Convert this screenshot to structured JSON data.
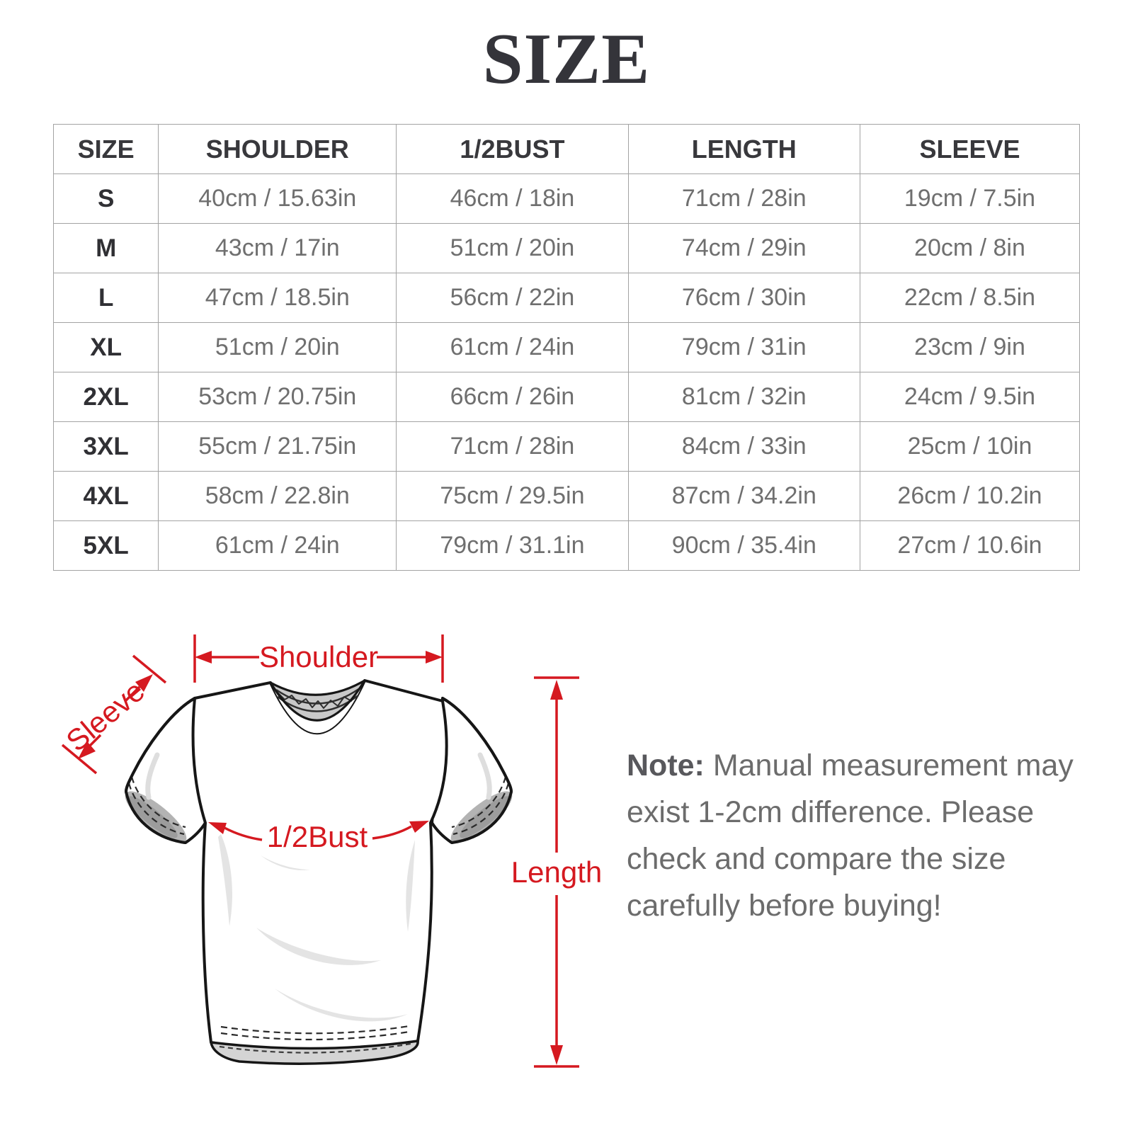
{
  "title": "SIZE",
  "table": {
    "headers": [
      "SIZE",
      "SHOULDER",
      "1/2BUST",
      "LENGTH",
      "SLEEVE"
    ],
    "rows": [
      [
        "S",
        "40cm / 15.63in",
        "46cm / 18in",
        "71cm / 28in",
        "19cm / 7.5in"
      ],
      [
        "M",
        "43cm / 17in",
        "51cm / 20in",
        "74cm / 29in",
        "20cm / 8in"
      ],
      [
        "L",
        "47cm / 18.5in",
        "56cm / 22in",
        "76cm / 30in",
        "22cm / 8.5in"
      ],
      [
        "XL",
        "51cm / 20in",
        "61cm / 24in",
        "79cm / 31in",
        "23cm / 9in"
      ],
      [
        "2XL",
        "53cm / 20.75in",
        "66cm / 26in",
        "81cm / 32in",
        "24cm / 9.5in"
      ],
      [
        "3XL",
        "55cm / 21.75in",
        "71cm / 28in",
        "84cm / 33in",
        "25cm / 10in"
      ],
      [
        "4XL",
        "58cm / 22.8in",
        "75cm / 29.5in",
        "87cm / 34.2in",
        "26cm / 10.2in"
      ],
      [
        "5XL",
        "61cm / 24in",
        "79cm / 31.1in",
        "90cm / 35.4in",
        "27cm / 10.6in"
      ]
    ]
  },
  "diagram": {
    "labels": {
      "shoulder": "Shoulder",
      "sleeve": "Sleeve",
      "bust": "1/2Bust",
      "length": "Length"
    },
    "annotation_color": "#d51920"
  },
  "note": {
    "prefix": "Note:",
    "text": "Manual measurement may\nexist 1-2cm difference. Please\ncheck and compare the size\ncarefully before buying!"
  }
}
